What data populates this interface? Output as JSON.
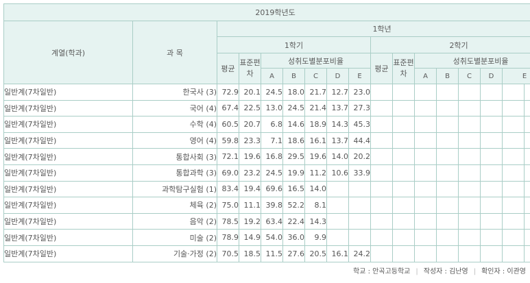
{
  "header": {
    "year": "2019학년도",
    "track_col": "계열(학과)",
    "subject_col": "과 목",
    "grade": "1학년",
    "sem1": "1학기",
    "sem2": "2학기",
    "avg": "평균",
    "std": "표준편차",
    "dist": "성취도별분포비율",
    "letters": [
      "A",
      "B",
      "C",
      "D",
      "E"
    ]
  },
  "rows": [
    {
      "track": "일반계(7차일반)",
      "subject": "한국사 (3)",
      "avg": "72.9",
      "std": "20.1",
      "A": "24.5",
      "B": "18.0",
      "C": "21.7",
      "D": "12.7",
      "E": "23.0"
    },
    {
      "track": "일반계(7차일반)",
      "subject": "국어 (4)",
      "avg": "67.4",
      "std": "22.5",
      "A": "13.0",
      "B": "24.5",
      "C": "21.4",
      "D": "13.7",
      "E": "27.3"
    },
    {
      "track": "일반계(7차일반)",
      "subject": "수학 (4)",
      "avg": "60.5",
      "std": "20.7",
      "A": "6.8",
      "B": "14.6",
      "C": "18.9",
      "D": "14.3",
      "E": "45.3"
    },
    {
      "track": "일반계(7차일반)",
      "subject": "영어 (4)",
      "avg": "59.8",
      "std": "23.3",
      "A": "7.1",
      "B": "18.6",
      "C": "16.1",
      "D": "13.7",
      "E": "44.4"
    },
    {
      "track": "일반계(7차일반)",
      "subject": "통합사회 (3)",
      "avg": "72.1",
      "std": "19.6",
      "A": "16.8",
      "B": "29.5",
      "C": "19.6",
      "D": "14.0",
      "E": "20.2"
    },
    {
      "track": "일반계(7차일반)",
      "subject": "통합과학 (3)",
      "avg": "69.0",
      "std": "23.2",
      "A": "24.5",
      "B": "19.9",
      "C": "11.2",
      "D": "10.6",
      "E": "33.9"
    },
    {
      "track": "일반계(7차일반)",
      "subject": "과학탐구실험 (1)",
      "avg": "83.4",
      "std": "19.4",
      "A": "69.6",
      "B": "16.5",
      "C": "14.0",
      "D": "",
      "E": ""
    },
    {
      "track": "일반계(7차일반)",
      "subject": "체육 (2)",
      "avg": "75.0",
      "std": "11.1",
      "A": "39.8",
      "B": "52.2",
      "C": "8.1",
      "D": "",
      "E": ""
    },
    {
      "track": "일반계(7차일반)",
      "subject": "음악 (2)",
      "avg": "78.5",
      "std": "19.2",
      "A": "63.4",
      "B": "22.4",
      "C": "14.3",
      "D": "",
      "E": ""
    },
    {
      "track": "일반계(7차일반)",
      "subject": "미술 (2)",
      "avg": "78.9",
      "std": "14.9",
      "A": "54.0",
      "B": "36.0",
      "C": "9.9",
      "D": "",
      "E": ""
    },
    {
      "track": "일반계(7차일반)",
      "subject": "기술·가정 (2)",
      "avg": "70.5",
      "std": "18.5",
      "A": "11.5",
      "B": "27.6",
      "C": "20.5",
      "D": "16.1",
      "E": "24.2"
    }
  ],
  "footer": {
    "school": "학교 : 안곡고등학교",
    "writer": "작성자 : 김난영",
    "checker": "확인자 : 이관영"
  }
}
